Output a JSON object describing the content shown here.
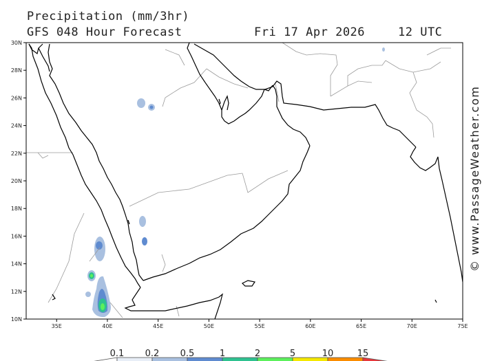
{
  "header": {
    "title": "Precipitation (mm/3hr)",
    "subtitle": "GFS 048 Hour Forecast",
    "date": "Fri 17 Apr 2026",
    "time": "12 UTC"
  },
  "credit": "© www.PassageWeather.com",
  "map": {
    "lon_range": [
      32,
      75
    ],
    "lat_range": [
      10,
      30
    ],
    "lon_ticks": [
      "35E",
      "40E",
      "45E",
      "50E",
      "55E",
      "60E",
      "65E",
      "70E",
      "75E"
    ],
    "lat_ticks": [
      "10N",
      "12N",
      "14N",
      "16N",
      "18N",
      "20N",
      "22N",
      "24N",
      "26N",
      "28N",
      "30N"
    ],
    "colors": {
      "coast": "#000000",
      "border": "#9a9a9a",
      "frame": "#000000"
    }
  },
  "colorbar": {
    "labels": [
      "0.1",
      "0.2",
      "0.5",
      "1",
      "2",
      "5",
      "10",
      "15"
    ],
    "colors": [
      "#e8eef7",
      "#a9c0e0",
      "#5f8bd0",
      "#2ec290",
      "#5cf05c",
      "#f5e800",
      "#fb8c00",
      "#e8383c"
    ]
  },
  "precip_areas": [
    {
      "name": "central-arabia",
      "level": "0.2",
      "color": "#a9c0e0"
    },
    {
      "name": "yemen-highlands",
      "level": "0.5",
      "color": "#5f8bd0"
    },
    {
      "name": "ethiopia-highlands",
      "level": "2",
      "color": "#5cf05c"
    }
  ]
}
